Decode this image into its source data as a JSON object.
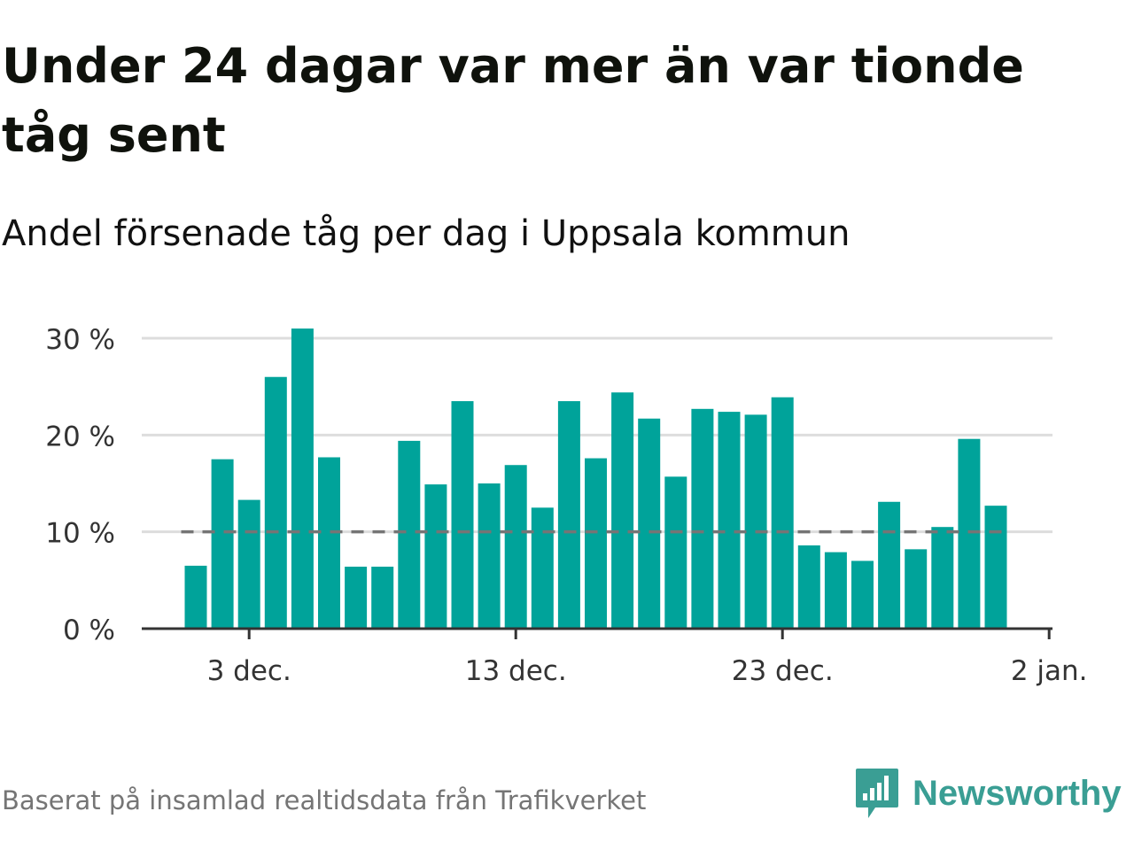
{
  "header": {
    "title": "Under 24 dagar var mer än var tionde tåg sent",
    "subtitle": "Andel försenade tåg per dag i Uppsala kommun"
  },
  "footer": {
    "source": "Baserat på insamlad realtidsdata från Trafikverket",
    "brand": "Newsworthy"
  },
  "colors": {
    "bar": "#00a39a",
    "reference_line": "#757575",
    "grid": "#dddddd",
    "axis": "#333333",
    "brand": "#3a9e94"
  },
  "icons": {
    "logo": "newsworthy-chart-bubble-icon"
  },
  "chart_data": {
    "type": "bar",
    "x": [
      "2023-12-01",
      "2023-12-02",
      "2023-12-03",
      "2023-12-04",
      "2023-12-05",
      "2023-12-06",
      "2023-12-07",
      "2023-12-08",
      "2023-12-09",
      "2023-12-10",
      "2023-12-11",
      "2023-12-12",
      "2023-12-13",
      "2023-12-14",
      "2023-12-15",
      "2023-12-16",
      "2023-12-17",
      "2023-12-18",
      "2023-12-19",
      "2023-12-20",
      "2023-12-21",
      "2023-12-22",
      "2023-12-23",
      "2023-12-24",
      "2023-12-25",
      "2023-12-26",
      "2023-12-27",
      "2023-12-28",
      "2023-12-29",
      "2023-12-30",
      "2023-12-31"
    ],
    "values": [
      6.5,
      17.5,
      13.3,
      26.0,
      31.0,
      17.7,
      6.4,
      6.4,
      19.4,
      14.9,
      23.5,
      15.0,
      16.9,
      12.5,
      23.5,
      17.6,
      24.4,
      21.7,
      15.7,
      22.7,
      22.4,
      22.1,
      23.9,
      8.6,
      7.9,
      7.0,
      13.1,
      8.2,
      10.5,
      19.6,
      12.7
    ],
    "reference_line": {
      "value": 10,
      "style": "dashed"
    },
    "ylim": [
      0,
      30
    ],
    "yticks": [
      0,
      10,
      20,
      30
    ],
    "ytick_labels": [
      "0 %",
      "10 %",
      "20 %",
      "30 %"
    ],
    "xticks": [
      "2023-12-03",
      "2023-12-13",
      "2023-12-23",
      "2024-01-02"
    ],
    "xtick_labels": [
      "3 dec.",
      "13 dec.",
      "23 dec.",
      "2 jan."
    ],
    "grid": true,
    "legend": false
  }
}
